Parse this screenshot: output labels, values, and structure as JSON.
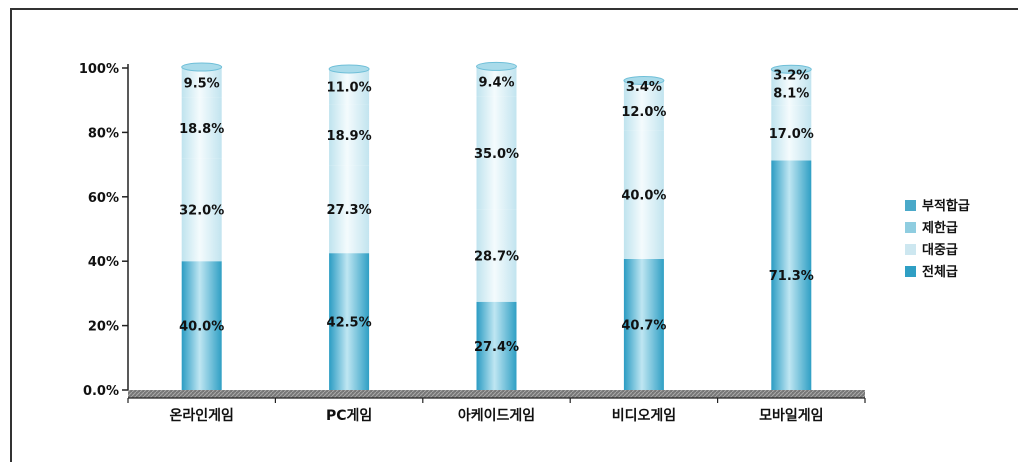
{
  "chart_data": {
    "type": "bar",
    "stacked": true,
    "percent": true,
    "categories": [
      "온라인게임",
      "PC게임",
      "아케이드게임",
      "비디오게임",
      "모바일게임"
    ],
    "yticks": [
      "0.0%",
      "20%",
      "40%",
      "60%",
      "80%",
      "100%"
    ],
    "ylim": [
      0,
      100
    ],
    "grid": false,
    "legend_position": "right",
    "legend": [
      "부적합급",
      "제한급",
      "대중급",
      "전체급"
    ],
    "series": [
      {
        "name": "전체급",
        "color": "#3aa8cc",
        "values": [
          40.0,
          42.5,
          27.4,
          40.7,
          71.3
        ],
        "labels": [
          "40.0%",
          "42.5%",
          "27.4%",
          "40.7%",
          "71.3%"
        ]
      },
      {
        "name": "대중급",
        "color": "#cfeaf2",
        "values": [
          32.0,
          27.3,
          28.7,
          40.0,
          17.0
        ],
        "labels": [
          "32.0%",
          "27.3%",
          "28.7%",
          "40.0%",
          "17.0%"
        ]
      },
      {
        "name": "제한급",
        "color": "#e8f5f9",
        "values": [
          18.8,
          18.9,
          35.0,
          12.0,
          8.1
        ],
        "labels": [
          "18.8%",
          "18.9%",
          "35.0%",
          "12.0%",
          "8.1%"
        ]
      },
      {
        "name": "부적합급",
        "color": "#dff0f6",
        "values": [
          9.5,
          11.0,
          9.4,
          3.4,
          3.2
        ],
        "labels": [
          "9.5%",
          "11.0%",
          "9.4%",
          "3.4%",
          "3.2%"
        ]
      }
    ],
    "legend_colors": [
      "#4aa9c9",
      "#8fcde0",
      "#cde7f0",
      "#2f9fc4"
    ]
  }
}
